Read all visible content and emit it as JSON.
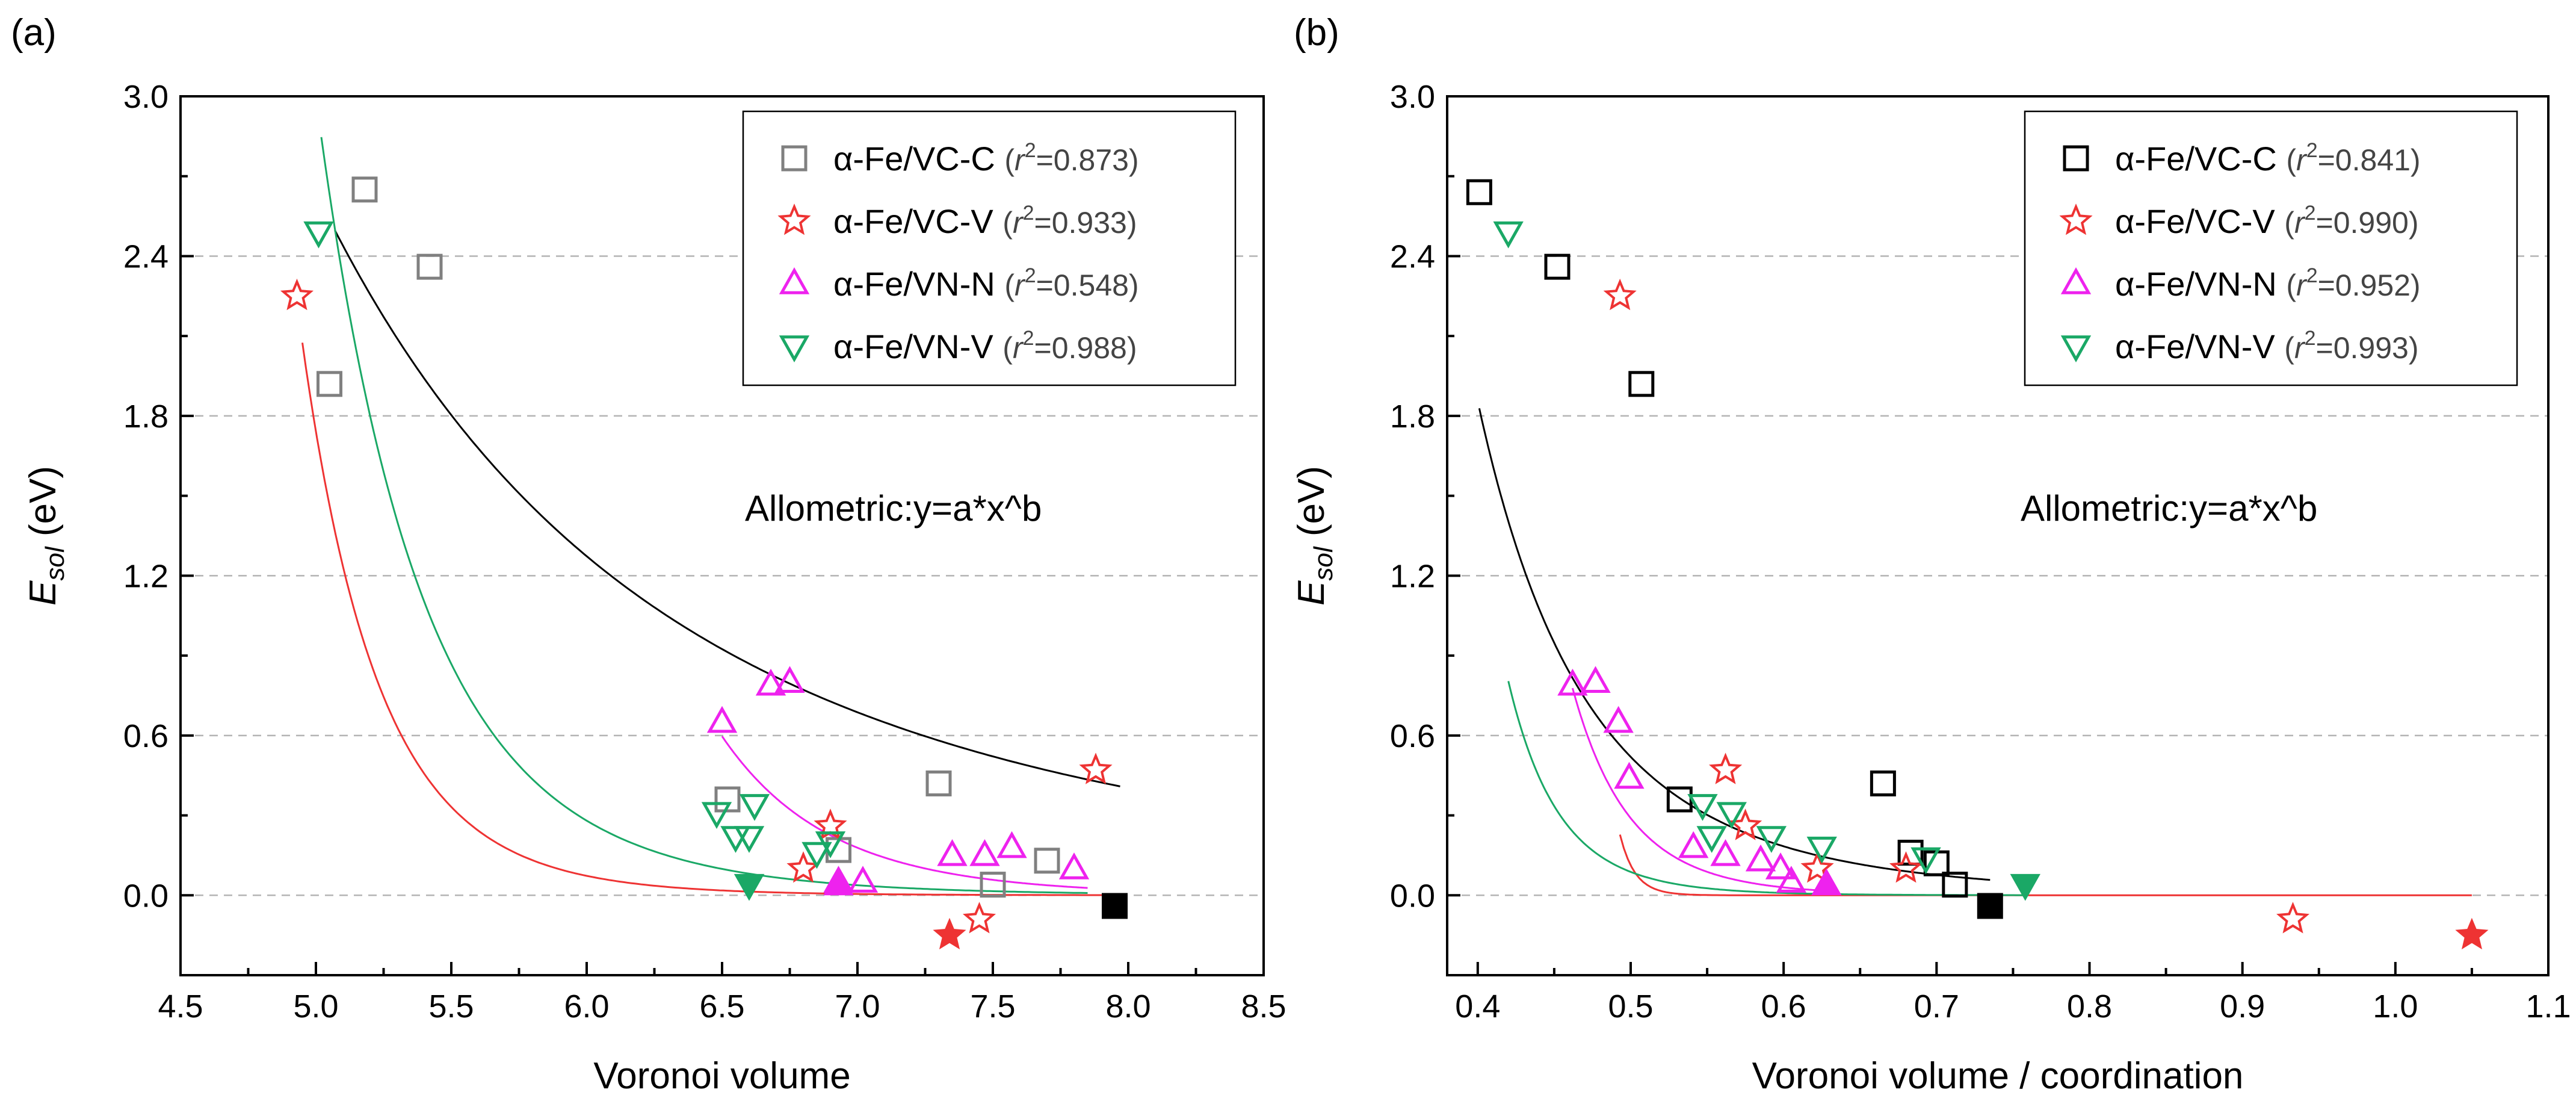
{
  "panels": [
    {
      "label": "(a)",
      "annotation": "Allometric:y=a*x^b",
      "xlabel": "Voronoi volume",
      "ylabel_main": "E",
      "ylabel_sub": "sol",
      "ylabel_unit": " (eV)"
    },
    {
      "label": "(b)",
      "annotation": "Allometric:y=a*x^b",
      "xlabel": "Voronoi volume / coordination",
      "ylabel_main": "E",
      "ylabel_sub": "sol",
      "ylabel_unit": " (eV)"
    }
  ],
  "chart_data": [
    {
      "type": "scatter",
      "title": "(a)",
      "xlabel": "Voronoi volume",
      "ylabel": "E_sol (eV)",
      "xlim": [
        4.5,
        8.5
      ],
      "ylim": [
        -0.3,
        3.0
      ],
      "xticks": [
        "4.5",
        "5.0",
        "5.5",
        "6.0",
        "6.5",
        "7.0",
        "7.5",
        "8.0",
        "8.5"
      ],
      "yticks": [
        "0.0",
        "0.6",
        "1.2",
        "1.8",
        "2.4",
        "3.0"
      ],
      "grid": "horizontal dashed",
      "legend_position": "top-right",
      "fit": "Allometric:y=a*x^b",
      "series": [
        {
          "name": "α-Fe/VC-C",
          "r2": "0.873",
          "marker": "square",
          "color": "#808080",
          "points": [
            [
              5.05,
              1.92
            ],
            [
              5.18,
              2.65
            ],
            [
              5.42,
              2.36
            ],
            [
              6.52,
              0.36
            ],
            [
              6.93,
              0.17
            ],
            [
              7.3,
              0.42
            ],
            [
              7.5,
              0.04
            ],
            [
              7.7,
              0.13
            ]
          ],
          "filled_points": [
            [
              7.95,
              -0.04
            ]
          ],
          "fit_line": {
            "a": 1650,
            "b": -4.0,
            "x_range": [
              5.07,
              7.97
            ]
          }
        },
        {
          "name": "α-Fe/VC-V",
          "r2": "0.933",
          "marker": "star",
          "color": "#ee3333",
          "points": [
            [
              4.93,
              2.25
            ],
            [
              6.8,
              0.1
            ],
            [
              6.9,
              0.26
            ],
            [
              7.45,
              -0.09
            ],
            [
              7.88,
              0.47
            ]
          ],
          "filled_points": [
            [
              7.34,
              -0.15
            ]
          ],
          "fit_line": {
            "a": 2530000000000,
            "b": -17.4,
            "x_range": [
              4.95,
              7.95
            ]
          }
        },
        {
          "name": "α-Fe/VN-N",
          "r2": "0.548",
          "marker": "triangle-up",
          "color": "#ee22ee",
          "points": [
            [
              6.5,
              0.65
            ],
            [
              6.68,
              0.79
            ],
            [
              6.75,
              0.8
            ],
            [
              6.93,
              0.05
            ],
            [
              7.02,
              0.05
            ],
            [
              7.35,
              0.15
            ],
            [
              7.47,
              0.15
            ],
            [
              7.57,
              0.18
            ],
            [
              7.8,
              0.1
            ]
          ],
          "filled_points": [
            [
              6.93,
              0.04
            ]
          ],
          "fit_line": {
            "a": 10630000000000,
            "b": -16.3,
            "x_range": [
              6.5,
              7.85
            ]
          }
        },
        {
          "name": "α-Fe/VN-V",
          "r2": "0.988",
          "marker": "triangle-down",
          "color": "#1aa866",
          "points": [
            [
              5.01,
              2.49
            ],
            [
              6.48,
              0.31
            ],
            [
              6.55,
              0.22
            ],
            [
              6.6,
              0.22
            ],
            [
              6.62,
              0.34
            ],
            [
              6.85,
              0.16
            ],
            [
              6.9,
              0.2
            ]
          ],
          "filled_points": [
            [
              6.6,
              0.04
            ]
          ],
          "fit_line": {
            "a": 3660000000,
            "b": -13.0,
            "x_range": [
              5.02,
              7.85
            ]
          }
        }
      ]
    },
    {
      "type": "scatter",
      "title": "(b)",
      "xlabel": "Voronoi volume / coordination",
      "ylabel": "E_sol (eV)",
      "xlim": [
        0.38,
        1.1
      ],
      "ylim": [
        -0.3,
        3.0
      ],
      "xticks": [
        "0.4",
        "0.5",
        "0.6",
        "0.7",
        "0.8",
        "0.9",
        "1.0",
        "1.1"
      ],
      "yticks": [
        "0.0",
        "0.6",
        "1.2",
        "1.8",
        "2.4",
        "3.0"
      ],
      "grid": "horizontal dashed",
      "legend_position": "top-right",
      "fit": "Allometric:y=a*x^b",
      "series": [
        {
          "name": "α-Fe/VC-C",
          "r2": "0.841",
          "marker": "square",
          "color": "#000000",
          "points": [
            [
              0.401,
              2.64
            ],
            [
              0.452,
              2.36
            ],
            [
              0.507,
              1.92
            ],
            [
              0.532,
              0.36
            ],
            [
              0.665,
              0.42
            ],
            [
              0.683,
              0.16
            ],
            [
              0.7,
              0.12
            ],
            [
              0.712,
              0.04
            ]
          ],
          "filled_points": [
            [
              0.735,
              -0.04
            ]
          ],
          "fit_line": {
            "a": 0.01,
            "b": -5.7,
            "x_range": [
              0.401,
              0.735
            ]
          }
        },
        {
          "name": "α-Fe/VC-V",
          "r2": "0.990",
          "marker": "star",
          "color": "#ee3333",
          "points": [
            [
              0.493,
              2.25
            ],
            [
              0.562,
              0.47
            ],
            [
              0.575,
              0.26
            ],
            [
              0.622,
              0.1
            ],
            [
              0.68,
              0.1
            ],
            [
              0.933,
              -0.09
            ]
          ],
          "filled_points": [
            [
              1.05,
              -0.15
            ]
          ],
          "fit_line": {
            "a": 1e-16,
            "b": -50.0,
            "x_range": [
              0.493,
              1.05
            ]
          }
        },
        {
          "name": "α-Fe/VN-N",
          "r2": "0.952",
          "marker": "triangle-up",
          "color": "#ee22ee",
          "points": [
            [
              0.462,
              0.79
            ],
            [
              0.477,
              0.8
            ],
            [
              0.492,
              0.65
            ],
            [
              0.499,
              0.44
            ],
            [
              0.541,
              0.18
            ],
            [
              0.562,
              0.15
            ],
            [
              0.585,
              0.13
            ],
            [
              0.598,
              0.1
            ],
            [
              0.605,
              0.05
            ]
          ],
          "filled_points": [
            [
              0.628,
              0.04
            ]
          ],
          "fit_line": {
            "a": 5e-05,
            "b": -12.5,
            "x_range": [
              0.462,
              0.628
            ]
          }
        },
        {
          "name": "α-Fe/VN-V",
          "r2": "0.993",
          "marker": "triangle-down",
          "color": "#1aa866",
          "points": [
            [
              0.42,
              2.49
            ],
            [
              0.547,
              0.34
            ],
            [
              0.553,
              0.22
            ],
            [
              0.566,
              0.31
            ],
            [
              0.592,
              0.22
            ],
            [
              0.625,
              0.18
            ],
            [
              0.693,
              0.14
            ]
          ],
          "filled_points": [
            [
              0.758,
              0.04
            ]
          ],
          "fit_line": {
            "a": 1.32e-05,
            "b": -12.7,
            "x_range": [
              0.42,
              0.758
            ]
          }
        }
      ]
    }
  ]
}
